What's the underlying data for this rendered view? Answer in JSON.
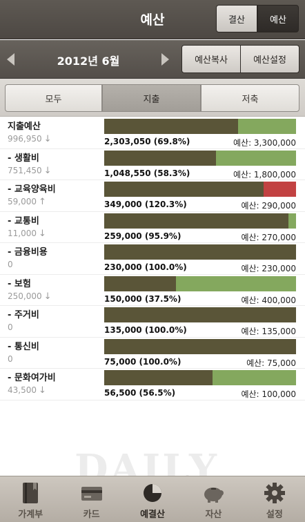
{
  "header": {
    "title": "예산",
    "toggle": [
      {
        "label": "결산",
        "selected": false
      },
      {
        "label": "예산",
        "selected": true
      }
    ]
  },
  "month_bar": {
    "month": "2012년 6월",
    "copy_label": "예산복사",
    "settings_label": "예산설정"
  },
  "filter_tabs": [
    {
      "label": "모두",
      "selected": false
    },
    {
      "label": "지출",
      "selected": true
    },
    {
      "label": "저축",
      "selected": false
    }
  ],
  "budget_items": [
    {
      "name": "지출예산",
      "remaining": "996,950",
      "trend": "↓",
      "spent_text": "2,303,050 (69.8%)",
      "budget_text": "예산: 3,300,000",
      "percent": 69.8
    },
    {
      "name": "- 생활비",
      "remaining": "751,450",
      "trend": "↓",
      "spent_text": "1,048,550 (58.3%)",
      "budget_text": "예산: 1,800,000",
      "percent": 58.3
    },
    {
      "name": "- 교육양육비",
      "remaining": "59,000",
      "trend": "↑",
      "spent_text": "349,000 (120.3%)",
      "budget_text": "예산: 290,000",
      "percent": 120.3
    },
    {
      "name": "- 교통비",
      "remaining": "11,000",
      "trend": "↓",
      "spent_text": "259,000 (95.9%)",
      "budget_text": "예산: 270,000",
      "percent": 95.9
    },
    {
      "name": "- 금융비용",
      "remaining": "0",
      "trend": "",
      "spent_text": "230,000 (100.0%)",
      "budget_text": "예산: 230,000",
      "percent": 100.0
    },
    {
      "name": "- 보험",
      "remaining": "250,000",
      "trend": "↓",
      "spent_text": "150,000 (37.5%)",
      "budget_text": "예산: 400,000",
      "percent": 37.5
    },
    {
      "name": "- 주거비",
      "remaining": "0",
      "trend": "",
      "spent_text": "135,000 (100.0%)",
      "budget_text": "예산: 135,000",
      "percent": 100.0
    },
    {
      "name": "- 통신비",
      "remaining": "0",
      "trend": "",
      "spent_text": "75,000 (100.0%)",
      "budget_text": "예산: 75,000",
      "percent": 100.0
    },
    {
      "name": "- 문화여가비",
      "remaining": "43,500",
      "trend": "↓",
      "spent_text": "56,500 (56.5%)",
      "budget_text": "예산: 100,000",
      "percent": 56.5
    }
  ],
  "colors": {
    "spent": "#5a5538",
    "remaining": "#84a85e",
    "over_budget": "#c24242"
  },
  "watermark": "DAILY",
  "bottom_nav": [
    {
      "label": "가계부",
      "icon": "book-icon",
      "active": false
    },
    {
      "label": "카드",
      "icon": "card-icon",
      "active": false
    },
    {
      "label": "예결산",
      "icon": "pie-chart-icon",
      "active": true
    },
    {
      "label": "자산",
      "icon": "piggy-bank-icon",
      "active": false
    },
    {
      "label": "설정",
      "icon": "gear-icon",
      "active": false
    }
  ]
}
